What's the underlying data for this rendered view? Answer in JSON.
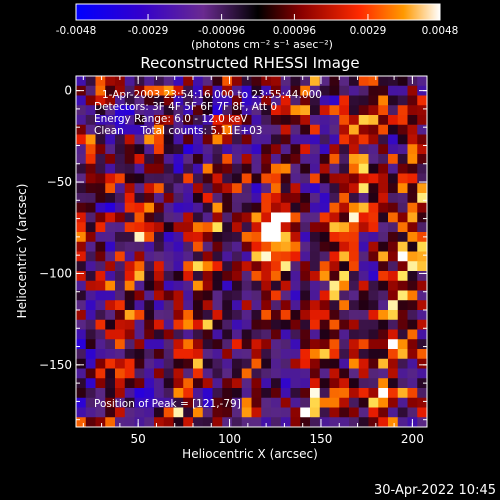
{
  "colorbar": {
    "ticks": [
      "-0.0048",
      "-0.0029",
      "-0.00096",
      "0.00096",
      "0.0029",
      "0.0048"
    ],
    "tick_values": [
      -0.0048,
      -0.0029,
      -0.00096,
      0.00096,
      0.0029,
      0.0048
    ],
    "range": [
      -0.0048,
      0.0048
    ],
    "units_label": "(photons cm⁻² s⁻¹ asec⁻²)"
  },
  "title": "Reconstructed RHESSI Image",
  "annotations": {
    "time": "1-Apr-2003 23:54:16.000 to 23:55:44.000",
    "detectors": "Detectors: 3F 4F 5F 6F 7F 8F, Att 0",
    "energy": "Energy Range: 6.0 - 12.0 keV",
    "clean": "Clean     Total counts: 5.11E+03",
    "peak": "Position of Peak = [121,-79]"
  },
  "footer": {
    "timestamp": "30-Apr-2022 10:45"
  },
  "chart_data": {
    "type": "heatmap",
    "title": "Reconstructed RHESSI Image",
    "xlabel": "Heliocentric X (arcsec)",
    "ylabel": "Heliocentric Y (arcsec)",
    "xlim": [
      16,
      208
    ],
    "ylim": [
      -184,
      8
    ],
    "xticks": [
      50,
      100,
      150,
      200
    ],
    "yticks": [
      0,
      -50,
      -100,
      -150
    ],
    "xtick_labels": [
      "50",
      "100",
      "150",
      "200"
    ],
    "ytick_labels": [
      "0",
      "−50",
      "−100",
      "−150"
    ],
    "colormap": [
      "#0000ff",
      "#4400cc",
      "#5a2a8c",
      "#000000",
      "#8b0000",
      "#ff2200",
      "#ff9900",
      "#ffff66",
      "#ffffff"
    ],
    "peak": [
      121,
      -79
    ]
  }
}
